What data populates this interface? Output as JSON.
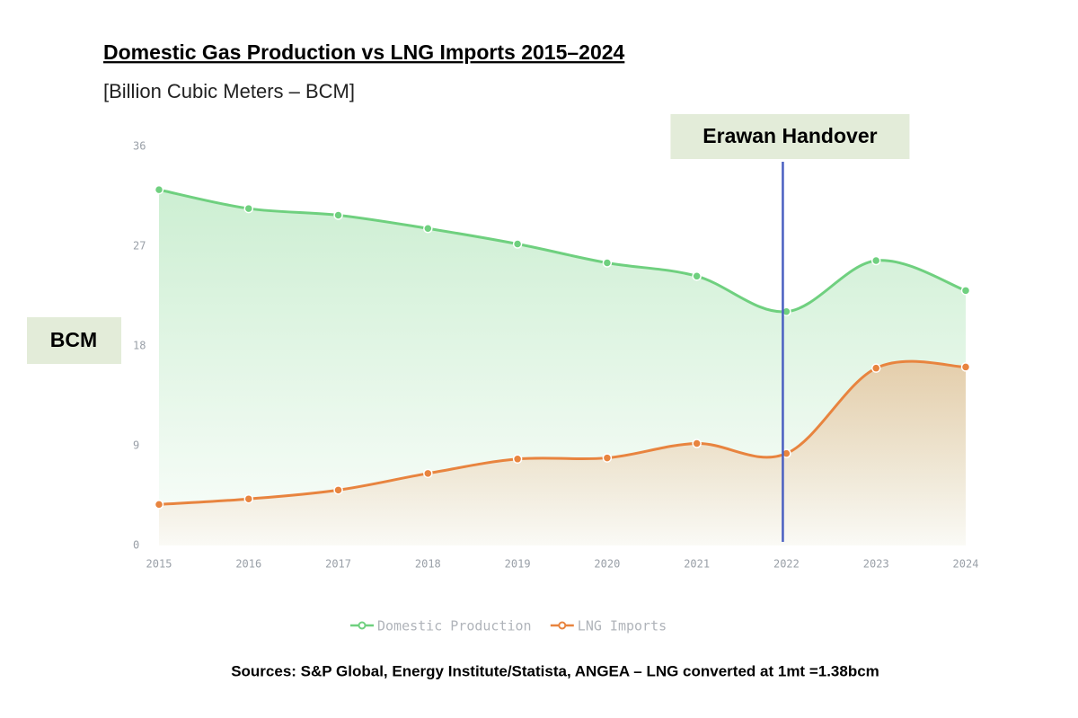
{
  "chart_data": {
    "type": "area-line",
    "title": "Domestic Gas Production vs LNG Imports 2015–2024",
    "subtitle": "[Billion Cubic Meters – BCM]",
    "ylabel": "BCM",
    "source": "Sources: S&P Global, Energy Institute/Statista, ANGEA – LNG converted at 1mt =1.38bcm",
    "categories": [
      "2015",
      "2016",
      "2017",
      "2018",
      "2019",
      "2020",
      "2021",
      "2022",
      "2023",
      "2024"
    ],
    "series": [
      {
        "name": "Domestic Production",
        "color": "#6fd07f",
        "values": [
          32.1,
          30.4,
          29.8,
          28.6,
          27.2,
          25.5,
          24.3,
          21.1,
          25.7,
          23.0
        ]
      },
      {
        "name": "LNG Imports",
        "color": "#e8843f",
        "values": [
          3.7,
          4.2,
          5.0,
          6.5,
          7.8,
          7.9,
          9.2,
          8.3,
          16.0,
          16.1
        ]
      }
    ],
    "ylim": [
      0,
      36
    ],
    "yticks": [
      0,
      9,
      18,
      27,
      36
    ],
    "grid": false,
    "legend": "bottom",
    "annotations": [
      {
        "text": "Erawan Handover",
        "category": "2022",
        "color": "#4a5fc1"
      }
    ]
  }
}
